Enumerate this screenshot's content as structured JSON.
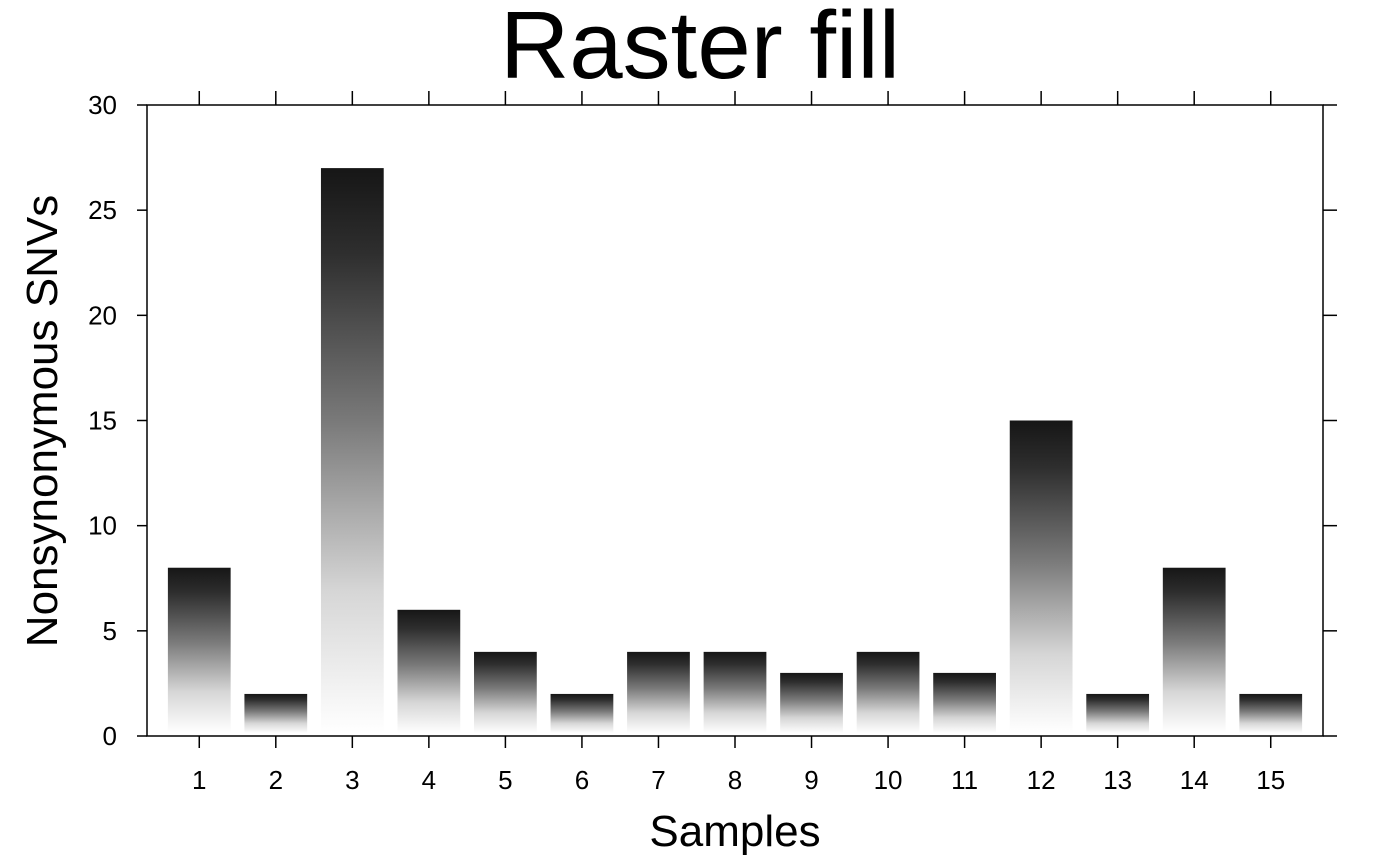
{
  "chart_data": {
    "type": "bar",
    "title": "Raster fill",
    "xlabel": "Samples",
    "ylabel": "Nonsynonymous SNVs",
    "categories": [
      "1",
      "2",
      "3",
      "4",
      "5",
      "6",
      "7",
      "8",
      "9",
      "10",
      "11",
      "12",
      "13",
      "14",
      "15"
    ],
    "values": [
      8,
      2,
      27,
      6,
      4,
      2,
      4,
      4,
      3,
      4,
      3,
      15,
      2,
      8,
      2
    ],
    "ylim": [
      0,
      30
    ],
    "yticks": [
      0,
      5,
      10,
      15,
      20,
      25,
      30
    ],
    "grid": false,
    "legend": "none",
    "fill": "vertical gradient from white (bottom) to near-black (top)",
    "colors": {
      "bar_top": "#161616",
      "bar_bottom": "#ffffff",
      "axis": "#000000"
    }
  }
}
